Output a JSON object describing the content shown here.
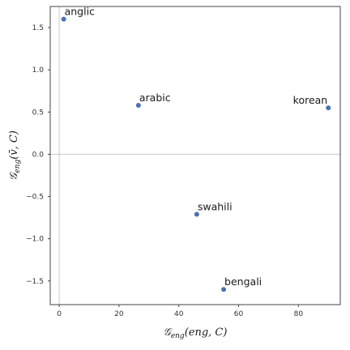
{
  "chart_data": {
    "type": "scatter",
    "xlabel_parts": [
      "𝒢",
      "eng",
      "(eng, C)"
    ],
    "ylabel_parts": [
      "𝒢",
      "eng",
      "(v̄, C)"
    ],
    "xlim": [
      -3,
      94
    ],
    "ylim": [
      -1.78,
      1.75
    ],
    "xticks": [
      0,
      20,
      40,
      60,
      80
    ],
    "yticks": [
      1.5,
      1.0,
      0.5,
      0.0,
      -0.5,
      -1.0,
      -1.5
    ],
    "ytick_labels": [
      "1.5",
      "1.0",
      "0.5",
      "0.0",
      "−0.5",
      "−1.0",
      "−1.5"
    ],
    "reference_lines": {
      "x": 0,
      "y": 0
    },
    "grid": false,
    "marker_color": "#4c72b0",
    "points": [
      {
        "label": "anglic",
        "x": 1.5,
        "y": 1.6,
        "label_pos": "top-right"
      },
      {
        "label": "arabic",
        "x": 26.5,
        "y": 0.58,
        "label_pos": "top-right"
      },
      {
        "label": "korean",
        "x": 90,
        "y": 0.55,
        "label_pos": "top-left"
      },
      {
        "label": "swahili",
        "x": 46,
        "y": -0.71,
        "label_pos": "top-right"
      },
      {
        "label": "bengali",
        "x": 55,
        "y": -1.6,
        "label_pos": "top-right"
      }
    ]
  }
}
